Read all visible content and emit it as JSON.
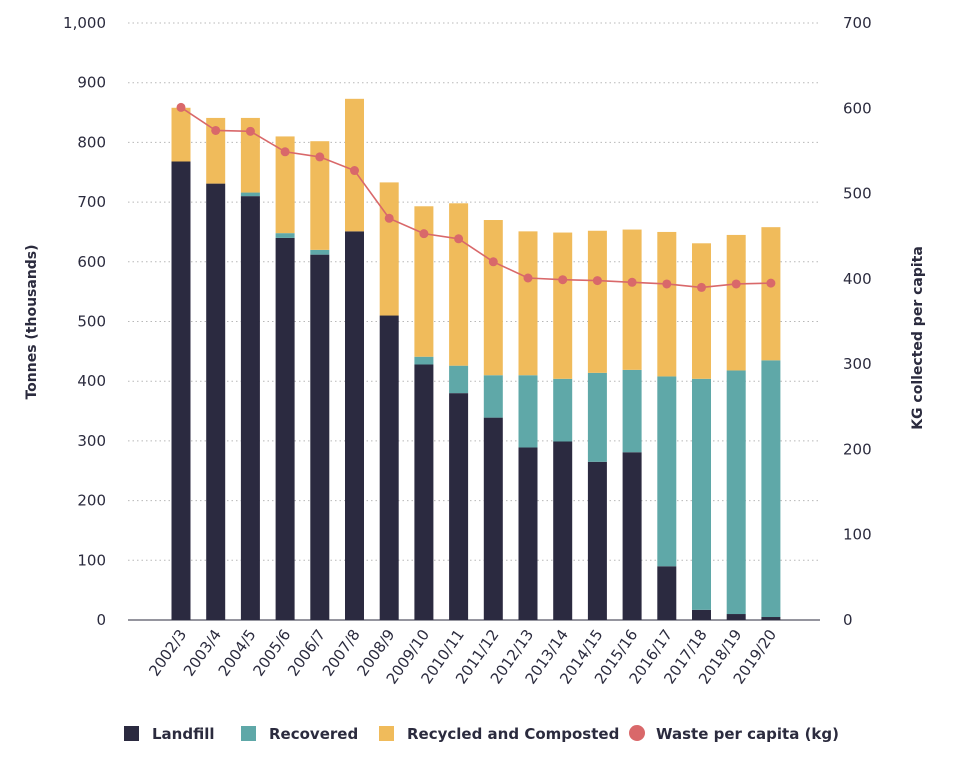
{
  "chart_data": {
    "type": "bar",
    "stacked": true,
    "categories": [
      "2002/3",
      "2003/4",
      "2004/5",
      "2005/6",
      "2006/7",
      "2007/8",
      "2008/9",
      "2009/10",
      "2010/11",
      "2011/12",
      "2012/13",
      "2013/14",
      "2014/15",
      "2015/16",
      "2016/17",
      "2017/18",
      "2018/19",
      "2019/20"
    ],
    "series": [
      {
        "name": "Landfill",
        "color": "#2b2a40",
        "values": [
          768,
          731,
          710,
          640,
          612,
          651,
          510,
          428,
          380,
          339,
          289,
          299,
          265,
          281,
          90,
          17,
          10,
          5
        ]
      },
      {
        "name": "Recovered",
        "color": "#5fa8a8",
        "values": [
          0,
          0,
          6,
          8,
          8,
          0,
          0,
          13,
          46,
          71,
          121,
          105,
          149,
          138,
          318,
          387,
          408,
          430
        ]
      },
      {
        "name": "Recycled and Composted",
        "color": "#f0bb5b",
        "values": [
          90,
          110,
          125,
          162,
          182,
          222,
          223,
          252,
          272,
          260,
          241,
          245,
          238,
          235,
          242,
          227,
          227,
          223
        ]
      }
    ],
    "line_series": {
      "name": "Waste per capita (kg)",
      "color": "#d9686a",
      "axis": "right",
      "values": [
        601,
        574,
        573,
        549,
        543,
        527,
        471,
        453,
        447,
        420,
        401,
        399,
        398,
        396,
        394,
        390,
        394,
        395
      ]
    },
    "ylabel": "Tonnes (thousands)",
    "y2label": "KG collected per capita",
    "ylim": [
      0,
      1000
    ],
    "y2lim": [
      0,
      700
    ],
    "yticks": [
      "0",
      "100",
      "200",
      "300",
      "400",
      "500",
      "600",
      "700",
      "800",
      "900",
      "1,000"
    ],
    "y2ticks": [
      "0",
      "100",
      "200",
      "300",
      "400",
      "500",
      "600",
      "700"
    ],
    "grid": true,
    "legend_position": "bottom"
  }
}
